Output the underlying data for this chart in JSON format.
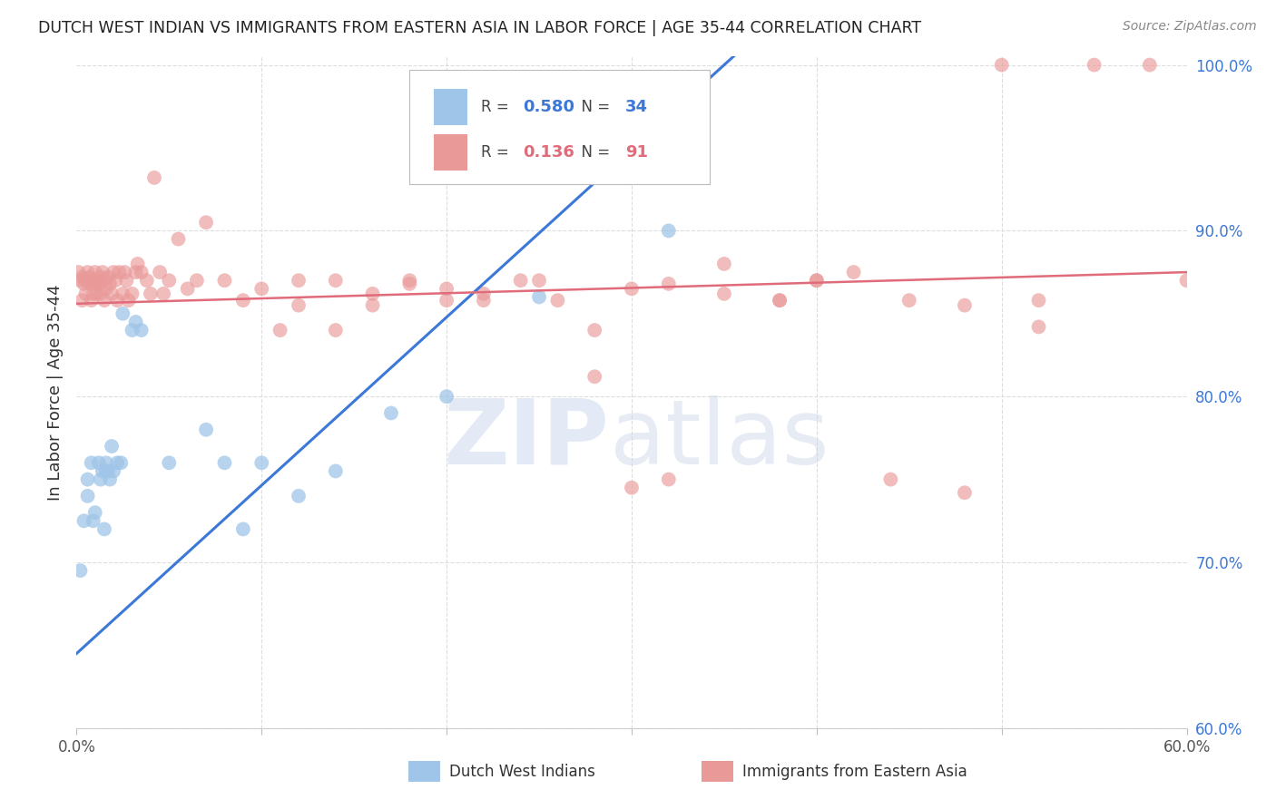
{
  "title": "DUTCH WEST INDIAN VS IMMIGRANTS FROM EASTERN ASIA IN LABOR FORCE | AGE 35-44 CORRELATION CHART",
  "source": "Source: ZipAtlas.com",
  "ylabel": "In Labor Force | Age 35-44",
  "xlim": [
    0.0,
    0.6
  ],
  "ylim": [
    0.6,
    1.005
  ],
  "xticks": [
    0.0,
    0.1,
    0.2,
    0.3,
    0.4,
    0.5,
    0.6
  ],
  "xticklabels": [
    "0.0%",
    "",
    "",
    "",
    "",
    "",
    "60.0%"
  ],
  "yticks": [
    0.6,
    0.7,
    0.8,
    0.9,
    1.0
  ],
  "yticklabels": [
    "60.0%",
    "70.0%",
    "80.0%",
    "90.0%",
    "100.0%"
  ],
  "blue_color": "#9fc5e8",
  "pink_color": "#ea9999",
  "blue_line_color": "#3c78d8",
  "pink_line_color": "#e06c7b",
  "legend_R_blue": "0.580",
  "legend_N_blue": "34",
  "legend_R_pink": "0.136",
  "legend_N_pink": "91",
  "legend_label_blue": "Dutch West Indians",
  "legend_label_pink": "Immigrants from Eastern Asia",
  "blue_scatter_x": [
    0.002,
    0.004,
    0.006,
    0.006,
    0.008,
    0.009,
    0.01,
    0.012,
    0.013,
    0.014,
    0.015,
    0.016,
    0.016,
    0.017,
    0.018,
    0.019,
    0.02,
    0.022,
    0.024,
    0.025,
    0.03,
    0.032,
    0.035,
    0.05,
    0.07,
    0.08,
    0.09,
    0.1,
    0.12,
    0.14,
    0.17,
    0.2,
    0.25,
    0.32
  ],
  "blue_scatter_y": [
    0.695,
    0.725,
    0.74,
    0.75,
    0.76,
    0.725,
    0.73,
    0.76,
    0.75,
    0.755,
    0.72,
    0.755,
    0.76,
    0.755,
    0.75,
    0.77,
    0.755,
    0.76,
    0.76,
    0.85,
    0.84,
    0.845,
    0.84,
    0.76,
    0.78,
    0.76,
    0.72,
    0.76,
    0.74,
    0.755,
    0.79,
    0.8,
    0.86,
    0.9
  ],
  "pink_scatter_x": [
    0.001,
    0.002,
    0.003,
    0.003,
    0.004,
    0.005,
    0.005,
    0.006,
    0.007,
    0.007,
    0.008,
    0.008,
    0.009,
    0.01,
    0.01,
    0.011,
    0.011,
    0.012,
    0.013,
    0.013,
    0.014,
    0.015,
    0.015,
    0.016,
    0.017,
    0.018,
    0.019,
    0.02,
    0.021,
    0.022,
    0.023,
    0.025,
    0.026,
    0.027,
    0.028,
    0.03,
    0.032,
    0.033,
    0.035,
    0.038,
    0.04,
    0.042,
    0.045,
    0.047,
    0.05,
    0.055,
    0.06,
    0.065,
    0.07,
    0.08,
    0.09,
    0.1,
    0.11,
    0.12,
    0.14,
    0.16,
    0.18,
    0.2,
    0.22,
    0.25,
    0.28,
    0.3,
    0.32,
    0.35,
    0.38,
    0.4,
    0.42,
    0.45,
    0.48,
    0.5,
    0.52,
    0.55,
    0.58,
    0.6,
    0.52,
    0.48,
    0.44,
    0.4,
    0.38,
    0.35,
    0.32,
    0.3,
    0.28,
    0.26,
    0.24,
    0.22,
    0.2,
    0.18,
    0.16,
    0.14,
    0.12
  ],
  "pink_scatter_y": [
    0.875,
    0.87,
    0.858,
    0.872,
    0.868,
    0.87,
    0.862,
    0.875,
    0.868,
    0.872,
    0.858,
    0.87,
    0.862,
    0.868,
    0.875,
    0.87,
    0.862,
    0.868,
    0.872,
    0.862,
    0.875,
    0.858,
    0.87,
    0.865,
    0.872,
    0.868,
    0.862,
    0.875,
    0.87,
    0.858,
    0.875,
    0.862,
    0.875,
    0.87,
    0.858,
    0.862,
    0.875,
    0.88,
    0.875,
    0.87,
    0.862,
    0.932,
    0.875,
    0.862,
    0.87,
    0.895,
    0.865,
    0.87,
    0.905,
    0.87,
    0.858,
    0.865,
    0.84,
    0.855,
    0.87,
    0.855,
    0.868,
    0.865,
    0.858,
    0.87,
    0.812,
    0.865,
    0.868,
    0.88,
    0.858,
    0.87,
    0.875,
    0.858,
    0.855,
    1.0,
    0.858,
    1.0,
    1.0,
    0.87,
    0.842,
    0.742,
    0.75,
    0.87,
    0.858,
    0.862,
    0.75,
    0.745,
    0.84,
    0.858,
    0.87,
    0.862,
    0.858,
    0.87,
    0.862,
    0.84,
    0.87
  ]
}
